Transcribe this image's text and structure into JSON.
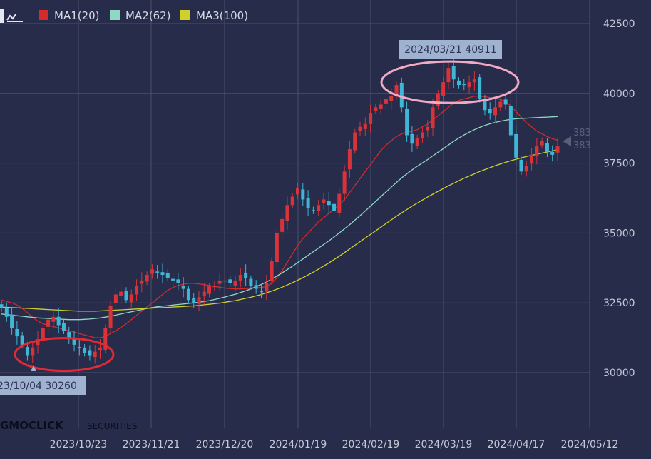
{
  "legend": {
    "items": [
      {
        "label": "MA1(20)",
        "color": "#d42a2a"
      },
      {
        "label": "MA2(62)",
        "color": "#8fd8c4"
      },
      {
        "label": "MA3(100)",
        "color": "#cfd12a"
      }
    ]
  },
  "brand": {
    "logo_text": "GMOCLICK",
    "suffix": "SECURITIES"
  },
  "colors": {
    "background": "#272c4a",
    "grid": "#4a4f6e",
    "axis_text": "#c5c8d6",
    "candle_up": "#d9333a",
    "candle_down": "#3fb6d6",
    "ellipse_low": "#e02a35",
    "ellipse_high": "#f2a9c4",
    "label_box": "#9fb2cf",
    "label_text": "#2d3356",
    "price_marker": "#5b6078"
  },
  "chart_data": {
    "type": "candlestick",
    "y_ticks": [
      "42500",
      "40000",
      "37500",
      "35000",
      "32500",
      "30000"
    ],
    "x_ticks": [
      "2023/10/23",
      "2023/11/21",
      "2023/12/20",
      "2024/01/19",
      "2024/02/19",
      "2024/03/19",
      "2024/04/17",
      "2024/05/12"
    ],
    "ylim": [
      27500,
      43000
    ],
    "grid": true,
    "annotations": [
      {
        "text": "2024/03/21 40911",
        "date": "2024/03/21",
        "value": 40911,
        "type": "high"
      },
      {
        "text": "23/10/04 30260",
        "date": "2023/10/04",
        "value": 30260,
        "type": "low"
      }
    ],
    "last_price_labels": [
      "383",
      "383"
    ],
    "series_close": [
      32300,
      32000,
      31600,
      31300,
      31000,
      30600,
      30900,
      31200,
      31600,
      31900,
      32000,
      31700,
      31500,
      31200,
      31000,
      30900,
      30700,
      30600,
      30750,
      30900,
      31600,
      32400,
      32800,
      32900,
      32600,
      32800,
      33100,
      33300,
      33500,
      33700,
      33600,
      33500,
      33400,
      33300,
      33200,
      33000,
      32600,
      32500,
      32700,
      32900,
      33100,
      33100,
      33300,
      33300,
      33200,
      33300,
      33500,
      33400,
      33100,
      33000,
      32900,
      33200,
      34000,
      35000,
      35500,
      36000,
      36300,
      36600,
      36200,
      35900,
      35800,
      36000,
      36200,
      36000,
      35800,
      36400,
      37200,
      38000,
      38600,
      38800,
      38900,
      39300,
      39500,
      39600,
      39800,
      39900,
      40300,
      39500,
      38500,
      38200,
      38400,
      38600,
      38800,
      39500,
      40000,
      40400,
      40911,
      40500,
      40300,
      40300,
      40400,
      40500,
      39800,
      39400,
      39300,
      39500,
      39700,
      39600,
      38500,
      37700,
      37200,
      37400,
      37800,
      38100,
      38300,
      37900,
      37800,
      38100
    ],
    "series_ma20": [
      32600,
      32550,
      32500,
      32420,
      32300,
      32150,
      31980,
      31850,
      31750,
      31700,
      31650,
      31600,
      31550,
      31500,
      31450,
      31400,
      31350,
      31300,
      31250,
      31250,
      31300,
      31400,
      31500,
      31620,
      31750,
      31900,
      32050,
      32200,
      32350,
      32500,
      32650,
      32800,
      32950,
      33050,
      33120,
      33170,
      33200,
      33200,
      33180,
      33150,
      33120,
      33090,
      33060,
      33030,
      33010,
      33000,
      33000,
      33010,
      33020,
      33040,
      33050,
      33080,
      33200,
      33400,
      33650,
      33950,
      34250,
      34550,
      34800,
      35000,
      35200,
      35400,
      35550,
      35700,
      35850,
      36000,
      36200,
      36450,
      36700,
      36950,
      37200,
      37450,
      37700,
      37950,
      38150,
      38300,
      38450,
      38550,
      38600,
      38650,
      38700,
      38800,
      38900,
      39050,
      39200,
      39350,
      39500,
      39650,
      39750,
      39800,
      39850,
      39900,
      39900,
      39880,
      39850,
      39820,
      39780,
      39700,
      39550,
      39350,
      39150,
      38950,
      38800,
      38650,
      38550,
      38450,
      38380,
      38320
    ],
    "series_ma62": [
      32100,
      32080,
      32060,
      32040,
      32020,
      32000,
      31980,
      31960,
      31950,
      31940,
      31930,
      31920,
      31910,
      31900,
      31900,
      31900,
      31910,
      31920,
      31940,
      31960,
      31990,
      32020,
      32060,
      32100,
      32140,
      32180,
      32220,
      32260,
      32300,
      32330,
      32360,
      32380,
      32400,
      32420,
      32440,
      32460,
      32480,
      32500,
      32520,
      32550,
      32580,
      32620,
      32660,
      32710,
      32760,
      32810,
      32870,
      32930,
      33000,
      33080,
      33160,
      33250,
      33350,
      33460,
      33570,
      33690,
      33810,
      33940,
      34070,
      34200,
      34330,
      34460,
      34590,
      34720,
      34860,
      35000,
      35150,
      35300,
      35460,
      35620,
      35790,
      35960,
      36130,
      36300,
      36470,
      36640,
      36810,
      36970,
      37120,
      37260,
      37390,
      37510,
      37630,
      37760,
      37890,
      38020,
      38150,
      38280,
      38400,
      38510,
      38610,
      38700,
      38780,
      38850,
      38910,
      38960,
      39000,
      39040,
      39070,
      39090,
      39100,
      39110,
      39120,
      39130,
      39140,
      39150,
      39160,
      39170
    ],
    "series_ma100": [
      32350,
      32340,
      32330,
      32320,
      32310,
      32300,
      32290,
      32280,
      32270,
      32260,
      32250,
      32240,
      32230,
      32220,
      32210,
      32200,
      32200,
      32200,
      32200,
      32210,
      32220,
      32230,
      32240,
      32250,
      32260,
      32270,
      32280,
      32290,
      32300,
      32310,
      32320,
      32330,
      32340,
      32350,
      32360,
      32370,
      32380,
      32390,
      32410,
      32430,
      32450,
      32470,
      32490,
      32520,
      32550,
      32580,
      32620,
      32660,
      32700,
      32750,
      32800,
      32860,
      32920,
      32990,
      33060,
      33140,
      33220,
      33310,
      33400,
      33500,
      33600,
      33710,
      33820,
      33930,
      34050,
      34170,
      34300,
      34430,
      34560,
      34690,
      34820,
      34950,
      35080,
      35210,
      35340,
      35470,
      35600,
      35720,
      35840,
      35960,
      36070,
      36180,
      36290,
      36390,
      36490,
      36590,
      36690,
      36780,
      36870,
      36960,
      37040,
      37120,
      37200,
      37270,
      37340,
      37410,
      37470,
      37530,
      37590,
      37640,
      37690,
      37740,
      37780,
      37820,
      37860,
      37900,
      37940,
      37980
    ]
  }
}
